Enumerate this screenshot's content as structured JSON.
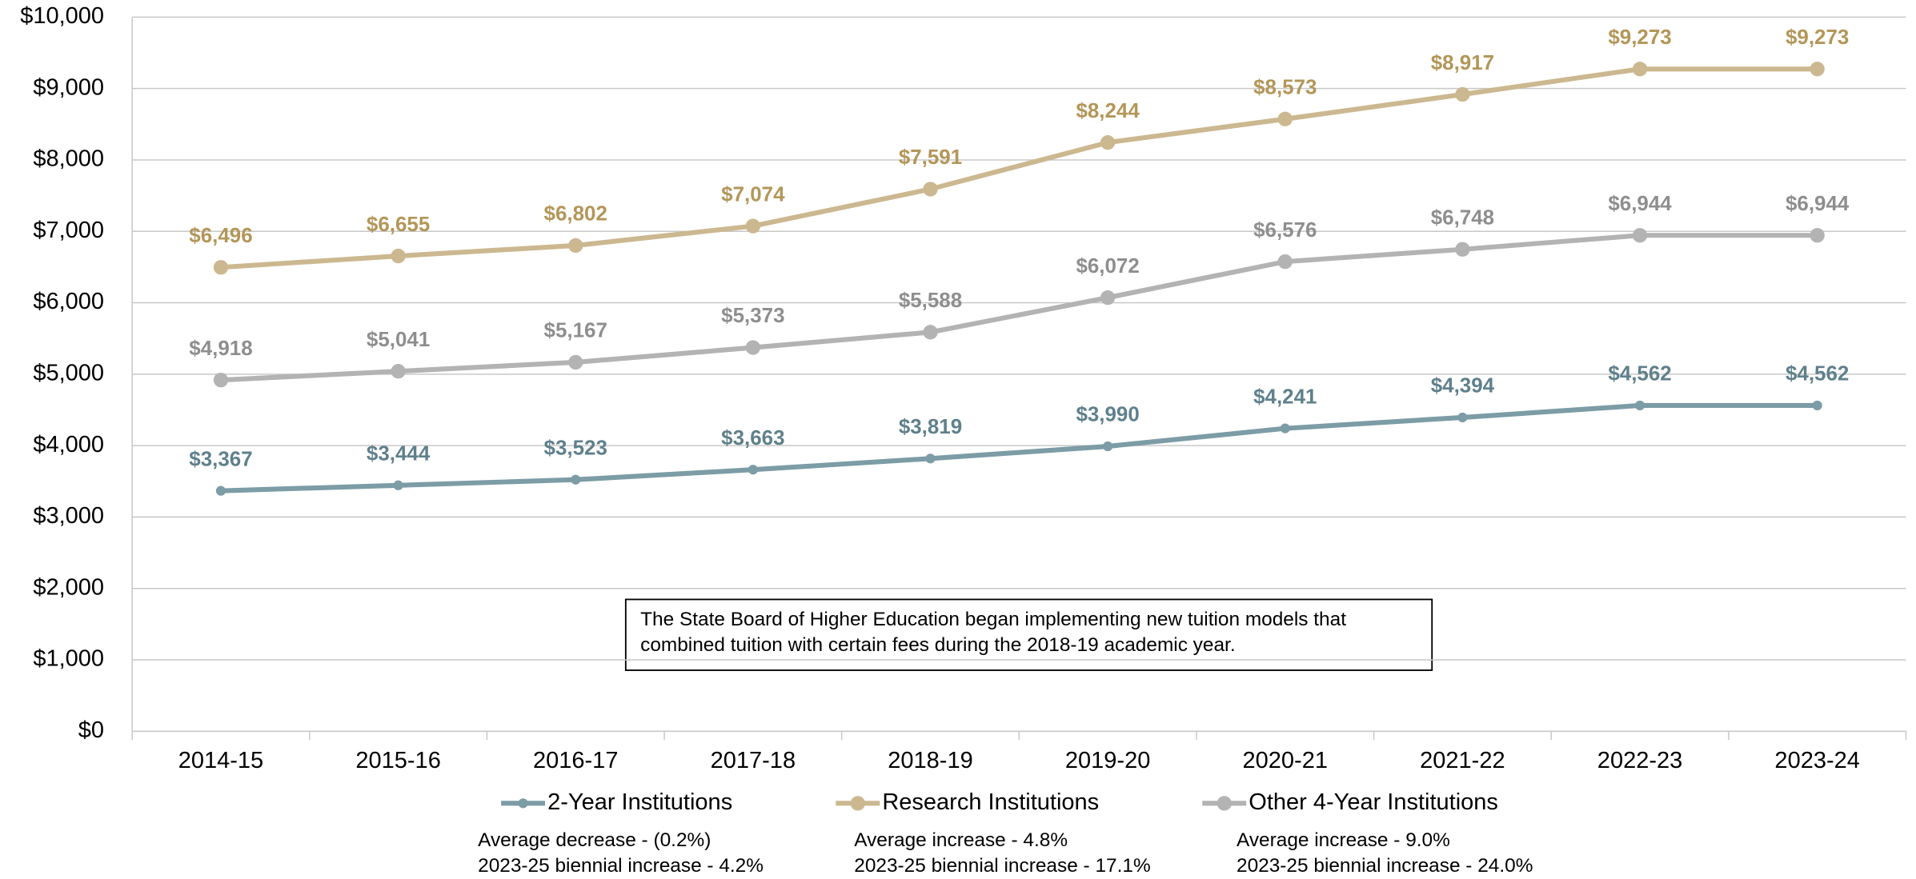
{
  "chart_data": {
    "type": "line",
    "categories": [
      "2014-15",
      "2015-16",
      "2016-17",
      "2017-18",
      "2018-19",
      "2019-20",
      "2020-21",
      "2021-22",
      "2022-23",
      "2023-24"
    ],
    "series": [
      {
        "name": "2-Year Institutions",
        "color": "#7c9ca6",
        "label_color": "#5f808c",
        "values": [
          3367,
          3444,
          3523,
          3663,
          3819,
          3990,
          4241,
          4394,
          4562,
          4562
        ],
        "value_labels": [
          "$3,367",
          "$3,444",
          "$3,523",
          "$3,663",
          "$3,819",
          "$3,990",
          "$4,241",
          "$4,394",
          "$4,562",
          "$4,562"
        ],
        "notes": [
          "Average decrease - (0.2%)",
          "2023-25 biennial increase - 4.2%"
        ]
      },
      {
        "name": "Research Institutions",
        "color": "#ccb890",
        "label_color": "#b39658",
        "values": [
          6496,
          6655,
          6802,
          7074,
          7591,
          8244,
          8573,
          8917,
          9273,
          9273
        ],
        "value_labels": [
          "$6,496",
          "$6,655",
          "$6,802",
          "$7,074",
          "$7,591",
          "$8,244",
          "$8,573",
          "$8,917",
          "$9,273",
          "$9,273"
        ],
        "notes": [
          "Average increase - 4.8%",
          "2023-25 biennial increase - 17.1%"
        ]
      },
      {
        "name": "Other 4-Year Institutions",
        "color": "#b3b3b3",
        "label_color": "#8e8e8e",
        "values": [
          4918,
          5041,
          5167,
          5373,
          5588,
          6072,
          6576,
          6748,
          6944,
          6944
        ],
        "value_labels": [
          "$4,918",
          "$5,041",
          "$5,167",
          "$5,373",
          "$5,588",
          "$6,072",
          "$6,576",
          "$6,748",
          "$6,944",
          "$6,944"
        ],
        "notes": [
          "Average increase - 9.0%",
          "2023-25 biennial increase - 24.0%"
        ]
      }
    ],
    "annotation": [
      "The State Board of Higher Education began implementing new tuition models that",
      "combined tuition with certain fees during the 2018-19 academic year."
    ],
    "ylim": [
      0,
      10000
    ],
    "yticks": [
      {
        "value": 0,
        "label": "$0"
      },
      {
        "value": 1000,
        "label": "$1,000"
      },
      {
        "value": 2000,
        "label": "$2,000"
      },
      {
        "value": 3000,
        "label": "$3,000"
      },
      {
        "value": 4000,
        "label": "$4,000"
      },
      {
        "value": 5000,
        "label": "$5,000"
      },
      {
        "value": 6000,
        "label": "$6,000"
      },
      {
        "value": 7000,
        "label": "$7,000"
      },
      {
        "value": 8000,
        "label": "$8,000"
      },
      {
        "value": 9000,
        "label": "$9,000"
      },
      {
        "value": 10000,
        "label": "$10,000"
      }
    ],
    "grid": true,
    "legend": "bottom"
  }
}
